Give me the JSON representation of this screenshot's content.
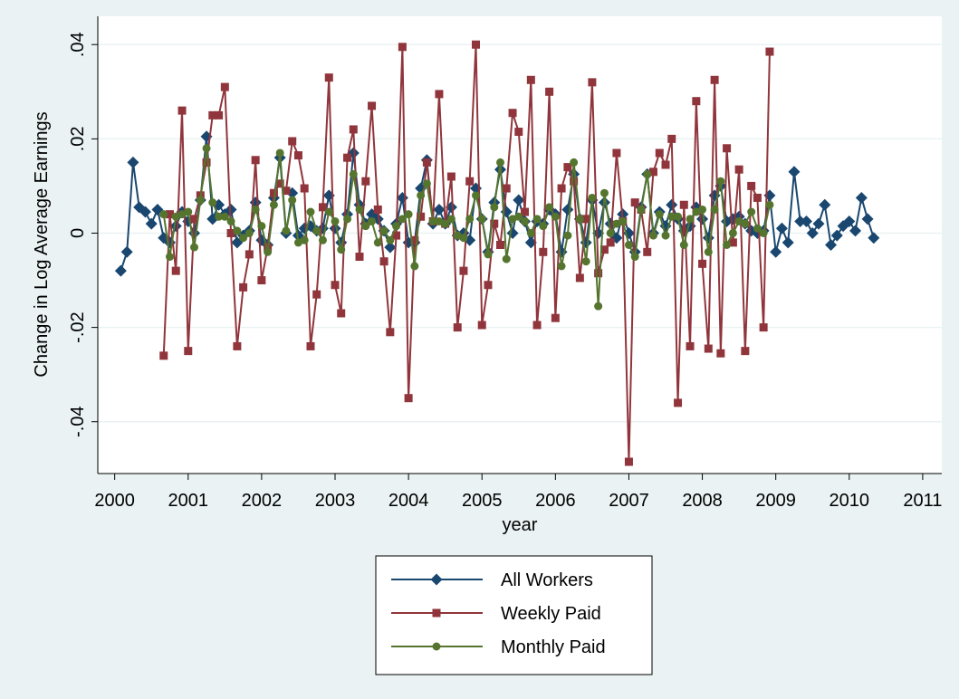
{
  "chart_data": {
    "type": "line",
    "x_label": "year",
    "y_label": "Change in Log Average Earnings",
    "xlim": [
      1999.77,
      2011.26
    ],
    "ylim": [
      -0.051,
      0.046
    ],
    "xticks": [
      2000,
      2001,
      2002,
      2003,
      2004,
      2005,
      2006,
      2007,
      2008,
      2009,
      2010,
      2011
    ],
    "yticks": [
      {
        "value": -0.04,
        "label": "-.04"
      },
      {
        "value": -0.02,
        "label": "-.02"
      },
      0,
      {
        "value": 0.02,
        "label": ".02"
      },
      {
        "value": 0.04,
        "label": ".04"
      }
    ],
    "grid": true,
    "legend": "bottom",
    "series": [
      {
        "name": "All Workers",
        "color": "#1a476f",
        "marker": "diamond",
        "x": [
          2000.083,
          2000.167,
          2000.25,
          2000.333,
          2000.417,
          2000.5,
          2000.583,
          2000.667,
          2000.75,
          2000.833,
          2000.917,
          2001,
          2001.083,
          2001.167,
          2001.25,
          2001.333,
          2001.417,
          2001.5,
          2001.583,
          2001.667,
          2001.75,
          2001.833,
          2001.917,
          2002,
          2002.083,
          2002.167,
          2002.25,
          2002.333,
          2002.417,
          2002.5,
          2002.583,
          2002.667,
          2002.75,
          2002.833,
          2002.917,
          2003,
          2003.083,
          2003.167,
          2003.25,
          2003.333,
          2003.417,
          2003.5,
          2003.583,
          2003.667,
          2003.75,
          2003.833,
          2003.917,
          2004,
          2004.083,
          2004.167,
          2004.25,
          2004.333,
          2004.417,
          2004.5,
          2004.583,
          2004.667,
          2004.75,
          2004.833,
          2004.917,
          2005,
          2005.083,
          2005.167,
          2005.25,
          2005.333,
          2005.417,
          2005.5,
          2005.583,
          2005.667,
          2005.75,
          2005.833,
          2005.917,
          2006,
          2006.083,
          2006.167,
          2006.25,
          2006.333,
          2006.417,
          2006.5,
          2006.583,
          2006.667,
          2006.75,
          2006.833,
          2006.917,
          2007,
          2007.083,
          2007.167,
          2007.25,
          2007.333,
          2007.417,
          2007.5,
          2007.583,
          2007.667,
          2007.75,
          2007.833,
          2007.917,
          2008,
          2008.083,
          2008.167,
          2008.25,
          2008.333,
          2008.417,
          2008.5,
          2008.583,
          2008.667,
          2008.75,
          2008.833,
          2008.917,
          2009,
          2009.083,
          2009.167,
          2009.25,
          2009.333,
          2009.417,
          2009.5,
          2009.583,
          2009.667,
          2009.75,
          2009.833,
          2009.917,
          2010,
          2010.083,
          2010.167,
          2010.25,
          2010.333
        ],
        "values": [
          -0.008,
          -0.004,
          0.015,
          0.0055,
          0.0045,
          0.002,
          0.005,
          -0.001,
          -0.002,
          0.0015,
          0.0045,
          0.0025,
          0.0,
          0.007,
          0.0205,
          0.003,
          0.006,
          0.004,
          0.005,
          -0.002,
          -0.0005,
          0.0005,
          0.0065,
          -0.0015,
          -0.0025,
          0.0075,
          0.016,
          0.0,
          0.0085,
          -0.0005,
          0.001,
          0.0015,
          0.0005,
          0.001,
          0.008,
          0.001,
          -0.002,
          0.004,
          0.017,
          0.006,
          0.002,
          0.004,
          0.003,
          0.0005,
          -0.003,
          0.002,
          0.0075,
          -0.002,
          -0.002,
          0.0095,
          0.0155,
          0.002,
          0.005,
          0.002,
          0.0055,
          -0.0005,
          0.0,
          -0.0015,
          0.0095,
          0.003,
          -0.004,
          0.0065,
          0.0135,
          0.0045,
          0.0,
          0.007,
          0.0025,
          -0.002,
          0.0025,
          0.002,
          0.005,
          0.004,
          -0.004,
          0.005,
          0.0125,
          0.003,
          -0.002,
          0.007,
          0.0,
          0.0065,
          0.002,
          -0.001,
          0.004,
          0.0,
          -0.004,
          0.0055,
          0.0125,
          0.0,
          0.0045,
          0.0015,
          0.006,
          0.003,
          0.0005,
          0.0015,
          0.0055,
          0.003,
          -0.001,
          0.008,
          0.01,
          0.0025,
          0.003,
          0.0035,
          0.002,
          0.0005,
          0.0,
          0.0005,
          0.008,
          -0.004,
          0.001,
          -0.002,
          0.013,
          0.0025,
          0.0025,
          0.0,
          0.002,
          0.006,
          -0.0025,
          -0.0005,
          0.0015,
          0.0025,
          0.0005,
          0.0075,
          0.003,
          -0.001
        ]
      },
      {
        "name": "Weekly Paid",
        "color": "#90353b",
        "marker": "square",
        "x": [
          2000.667,
          2000.75,
          2000.833,
          2000.917,
          2001,
          2001.083,
          2001.167,
          2001.25,
          2001.333,
          2001.417,
          2001.5,
          2001.583,
          2001.667,
          2001.75,
          2001.833,
          2001.917,
          2002,
          2002.083,
          2002.167,
          2002.25,
          2002.333,
          2002.417,
          2002.5,
          2002.583,
          2002.667,
          2002.75,
          2002.833,
          2002.917,
          2003,
          2003.083,
          2003.167,
          2003.25,
          2003.333,
          2003.417,
          2003.5,
          2003.583,
          2003.667,
          2003.75,
          2003.833,
          2003.917,
          2004,
          2004.083,
          2004.167,
          2004.25,
          2004.333,
          2004.417,
          2004.5,
          2004.583,
          2004.667,
          2004.75,
          2004.833,
          2004.917,
          2005,
          2005.083,
          2005.167,
          2005.25,
          2005.333,
          2005.417,
          2005.5,
          2005.583,
          2005.667,
          2005.75,
          2005.833,
          2005.917,
          2006,
          2006.083,
          2006.167,
          2006.25,
          2006.333,
          2006.417,
          2006.5,
          2006.583,
          2006.667,
          2006.75,
          2006.833,
          2006.917,
          2007,
          2007.083,
          2007.167,
          2007.25,
          2007.333,
          2007.417,
          2007.5,
          2007.583,
          2007.667,
          2007.75,
          2007.833,
          2007.917,
          2008,
          2008.083,
          2008.167,
          2008.25,
          2008.333,
          2008.417,
          2008.5,
          2008.583,
          2008.667,
          2008.75,
          2008.833,
          2008.917
        ],
        "values": [
          -0.026,
          0.004,
          -0.008,
          0.026,
          -0.025,
          0.003,
          0.008,
          0.015,
          0.025,
          0.025,
          0.031,
          0.0,
          -0.024,
          -0.0115,
          -0.0045,
          0.0155,
          -0.01,
          -0.003,
          0.0085,
          0.0105,
          0.009,
          0.0195,
          0.0165,
          0.0095,
          -0.024,
          -0.013,
          0.0055,
          0.033,
          -0.011,
          -0.017,
          0.016,
          0.022,
          -0.005,
          0.011,
          0.027,
          0.005,
          -0.006,
          -0.021,
          -0.0005,
          0.0395,
          -0.035,
          -0.0015,
          0.0035,
          0.015,
          0.0025,
          0.0295,
          0.002,
          0.012,
          -0.02,
          -0.008,
          0.011,
          0.04,
          -0.0195,
          -0.011,
          0.002,
          -0.0025,
          0.0095,
          0.0255,
          0.0215,
          0.0045,
          0.0325,
          -0.0195,
          -0.004,
          0.03,
          -0.018,
          0.0095,
          0.014,
          0.011,
          -0.0095,
          0.003,
          0.032,
          -0.0085,
          -0.0035,
          -0.002,
          0.017,
          0.0025,
          -0.0485,
          0.0065,
          0.005,
          -0.004,
          0.013,
          0.017,
          0.0145,
          0.02,
          -0.036,
          0.006,
          -0.024,
          0.028,
          -0.0065,
          -0.0245,
          0.0325,
          -0.0255,
          0.018,
          -0.002,
          0.0135,
          -0.025,
          0.01,
          0.0075,
          -0.02,
          0.0385
        ]
      },
      {
        "name": "Monthly Paid",
        "color": "#55752f",
        "marker": "circle",
        "x": [
          2000.667,
          2000.75,
          2000.833,
          2000.917,
          2001,
          2001.083,
          2001.167,
          2001.25,
          2001.333,
          2001.417,
          2001.5,
          2001.583,
          2001.667,
          2001.75,
          2001.833,
          2001.917,
          2002,
          2002.083,
          2002.167,
          2002.25,
          2002.333,
          2002.417,
          2002.5,
          2002.583,
          2002.667,
          2002.75,
          2002.833,
          2002.917,
          2003,
          2003.083,
          2003.167,
          2003.25,
          2003.333,
          2003.417,
          2003.5,
          2003.583,
          2003.667,
          2003.75,
          2003.833,
          2003.917,
          2004,
          2004.083,
          2004.167,
          2004.25,
          2004.333,
          2004.417,
          2004.5,
          2004.583,
          2004.667,
          2004.75,
          2004.833,
          2004.917,
          2005,
          2005.083,
          2005.167,
          2005.25,
          2005.333,
          2005.417,
          2005.5,
          2005.583,
          2005.667,
          2005.75,
          2005.833,
          2005.917,
          2006,
          2006.083,
          2006.167,
          2006.25,
          2006.333,
          2006.417,
          2006.5,
          2006.583,
          2006.667,
          2006.75,
          2006.833,
          2006.917,
          2007,
          2007.083,
          2007.167,
          2007.25,
          2007.333,
          2007.417,
          2007.5,
          2007.583,
          2007.667,
          2007.75,
          2007.833,
          2007.917,
          2008,
          2008.083,
          2008.167,
          2008.25,
          2008.333,
          2008.417,
          2008.5,
          2008.583,
          2008.667,
          2008.75,
          2008.833,
          2008.917
        ],
        "values": [
          0.004,
          -0.005,
          0.0035,
          0.004,
          0.0045,
          -0.003,
          0.007,
          0.018,
          0.0065,
          0.0035,
          0.0035,
          0.0025,
          0.0005,
          -0.001,
          0.0,
          0.005,
          0.0015,
          -0.004,
          0.006,
          0.017,
          0.0005,
          0.007,
          -0.002,
          -0.0015,
          0.0045,
          0.0005,
          -0.0015,
          0.0045,
          0.0025,
          -0.0035,
          0.003,
          0.0125,
          0.005,
          0.0015,
          0.0025,
          -0.002,
          0.0005,
          -0.0015,
          0.0015,
          0.003,
          0.004,
          -0.007,
          0.008,
          0.0105,
          0.0025,
          0.0025,
          0.002,
          0.003,
          -0.0005,
          -0.001,
          0.003,
          0.008,
          0.003,
          -0.0045,
          0.0055,
          0.015,
          -0.0055,
          0.003,
          0.0035,
          0.0025,
          0.0,
          0.003,
          0.0015,
          0.0055,
          0.0035,
          -0.007,
          -0.0005,
          0.015,
          0.003,
          -0.006,
          0.0075,
          -0.0155,
          0.0085,
          0.0,
          0.002,
          0.0025,
          -0.0025,
          -0.005,
          0.005,
          0.0125,
          -0.0005,
          0.004,
          -0.0005,
          0.0035,
          0.0035,
          -0.0025,
          0.003,
          0.0045,
          0.005,
          -0.004,
          0.005,
          0.011,
          -0.0025,
          0.0,
          0.0025,
          0.002,
          0.0045,
          0.001,
          0.0,
          0.006
        ]
      }
    ]
  }
}
